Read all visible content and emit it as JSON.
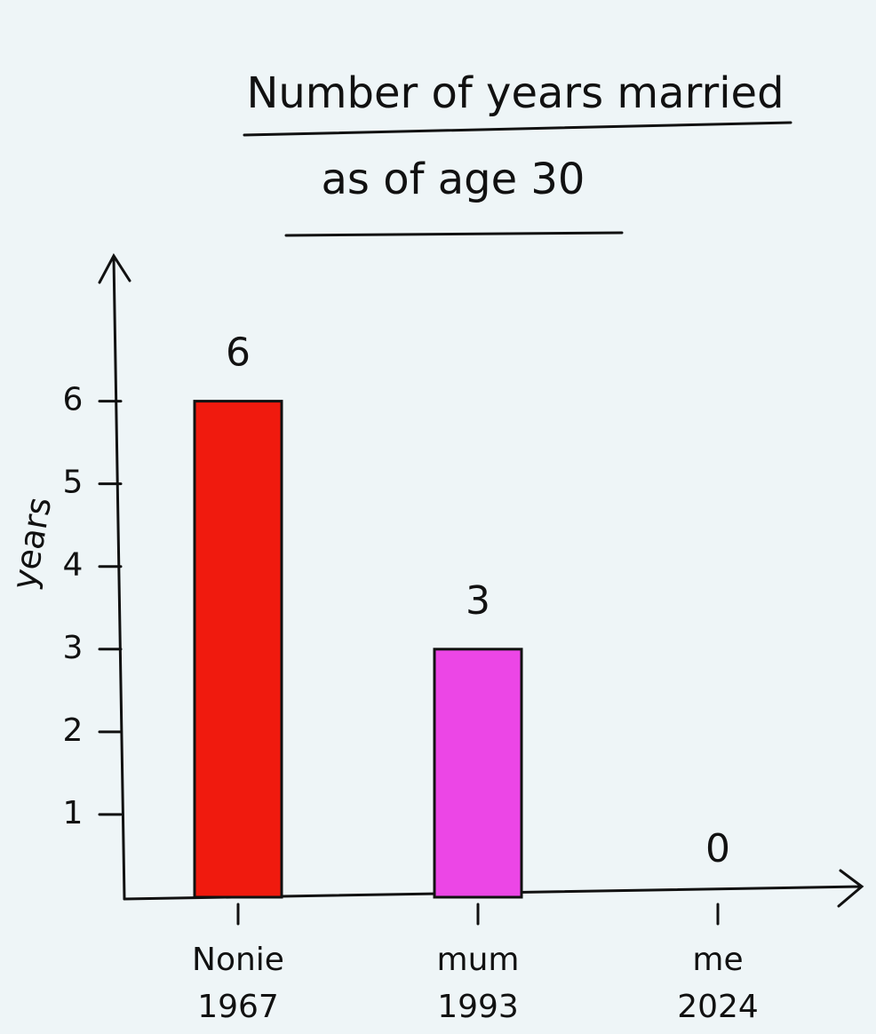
{
  "chart_data": {
    "type": "bar",
    "title": [
      "Number of years married",
      "as of age 30"
    ],
    "y_label": "years",
    "categories": [
      [
        "Nonie",
        "1967"
      ],
      [
        "mum",
        "1993"
      ],
      [
        "me",
        "2024"
      ]
    ],
    "values": [
      6,
      3,
      0
    ],
    "colors": [
      "#f01a0e",
      "#ec46e6"
    ],
    "ylim": [
      0,
      7.5
    ],
    "yticks": [
      1,
      2,
      3,
      4,
      5,
      6
    ],
    "grid": false
  }
}
